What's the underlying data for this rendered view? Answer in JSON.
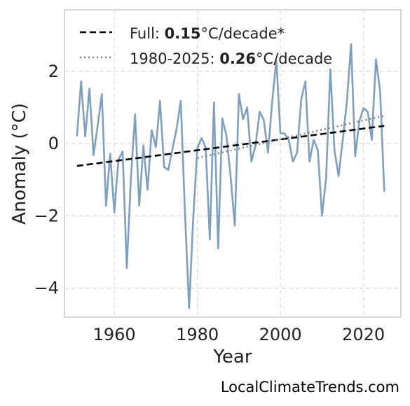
{
  "chart_data": {
    "type": "line",
    "xlabel": "Year",
    "ylabel": "Anomaly (°C)",
    "xlim": [
      1948,
      2029
    ],
    "ylim": [
      -4.8,
      3.7
    ],
    "x_ticks": [
      1960,
      1980,
      2000,
      2020
    ],
    "x_tick_labels": [
      "1960",
      "1980",
      "2000",
      "2020"
    ],
    "y_ticks": [
      -4,
      -2,
      0,
      2
    ],
    "y_tick_labels": [
      "−4",
      "−2",
      "0",
      "2"
    ],
    "grid": true,
    "legend_position": "top-left",
    "series": [
      {
        "style": "solid",
        "color": "#7f9fbf",
        "x": [
          1951,
          1952,
          1953,
          1954,
          1955,
          1956,
          1957,
          1958,
          1959,
          1960,
          1961,
          1962,
          1963,
          1964,
          1965,
          1966,
          1967,
          1968,
          1969,
          1970,
          1971,
          1972,
          1973,
          1974,
          1975,
          1976,
          1977,
          1978,
          1979,
          1980,
          1981,
          1982,
          1983,
          1984,
          1985,
          1986,
          1987,
          1988,
          1989,
          1990,
          1991,
          1992,
          1993,
          1994,
          1995,
          1996,
          1997,
          1998,
          1999,
          2000,
          2001,
          2002,
          2003,
          2004,
          2005,
          2006,
          2007,
          2008,
          2009,
          2010,
          2011,
          2012,
          2013,
          2014,
          2015,
          2016,
          2017,
          2018,
          2019,
          2020,
          2021,
          2022,
          2023,
          2024,
          2025
        ],
        "y": [
          0.2,
          1.72,
          0.2,
          1.52,
          -0.32,
          0.5,
          1.37,
          -1.72,
          -0.28,
          -1.9,
          -0.45,
          -0.22,
          -3.44,
          -0.95,
          0.81,
          -1.72,
          -0.05,
          -1.28,
          0.37,
          -0.1,
          1.18,
          -0.65,
          -0.73,
          -0.15,
          0.41,
          1.18,
          -1.9,
          -4.55,
          -2.06,
          -0.12,
          0.15,
          -0.12,
          -2.65,
          1.14,
          -2.9,
          0.7,
          0.22,
          -0.9,
          -2.27,
          1.37,
          0.67,
          1.0,
          -0.5,
          -0.05,
          0.88,
          0.65,
          -0.25,
          1.14,
          2.32,
          0.28,
          0.28,
          0.1,
          -0.5,
          -0.25,
          1.22,
          1.72,
          -0.5,
          0.1,
          -0.18,
          -2.0,
          -0.95,
          2.05,
          -0.18,
          -0.9,
          0.1,
          1.18,
          2.75,
          -0.35,
          0.62,
          0.98,
          0.88,
          0.1,
          2.33,
          1.45,
          -1.33
        ]
      },
      {
        "style": "dashed",
        "color": "#000000",
        "x": [
          1951,
          2025
        ],
        "y": [
          -0.62,
          0.49
        ]
      },
      {
        "style": "dotted",
        "color": "#808080",
        "x": [
          1980,
          2025
        ],
        "y": [
          -0.4,
          0.77
        ]
      }
    ],
    "legend": [
      {
        "style": "dashed",
        "color": "#000000",
        "prefix": "Full: ",
        "value": "0.15",
        "suffix": "°C/decade*"
      },
      {
        "style": "dotted",
        "color": "#808080",
        "prefix": "1980-2025: ",
        "value": "0.26",
        "suffix": "°C/decade"
      }
    ]
  },
  "credit": "LocalClimateTrends.com"
}
